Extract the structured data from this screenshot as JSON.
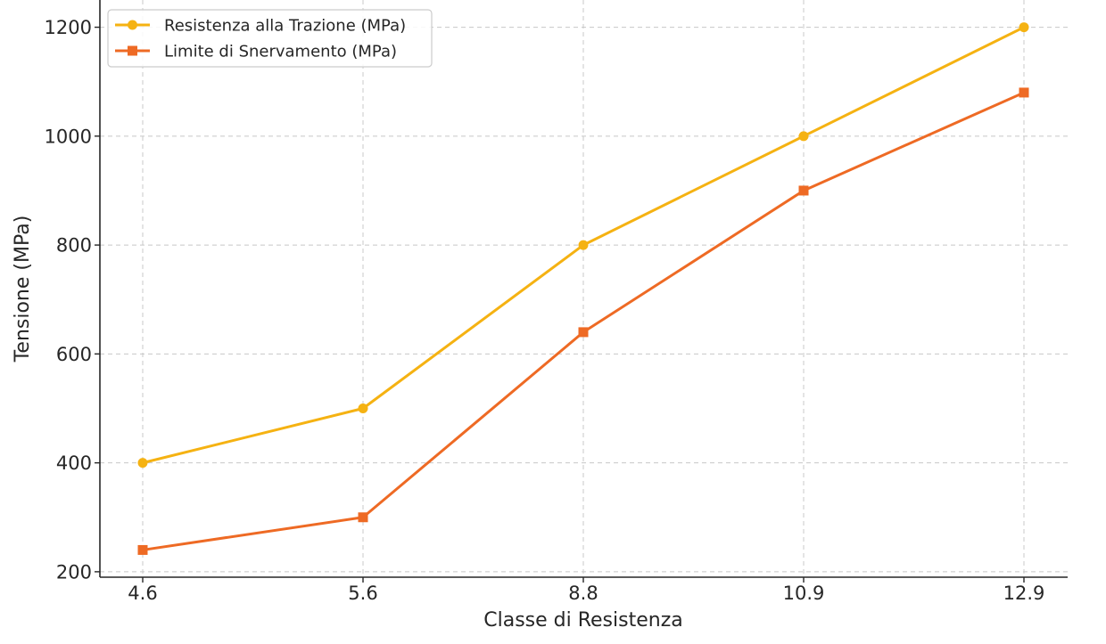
{
  "chart_data": {
    "type": "line",
    "title": "",
    "xlabel": "Classe di Resistenza",
    "ylabel": "Tensione (MPa)",
    "categories": [
      "4.6",
      "5.6",
      "8.8",
      "10.9",
      "12.9"
    ],
    "ylim": [
      190,
      1250
    ],
    "yticks": [
      200,
      400,
      600,
      800,
      1000,
      1200
    ],
    "grid": true,
    "legend_position": "top-left",
    "series": [
      {
        "name": "Resistenza alla Trazione (MPa)",
        "values": [
          400,
          500,
          800,
          1000,
          1200
        ],
        "color": "#F5B212",
        "marker": "circle"
      },
      {
        "name": "Limite di Snervamento (MPa)",
        "values": [
          240,
          300,
          640,
          900,
          1080
        ],
        "color": "#EE6A24",
        "marker": "square"
      }
    ]
  }
}
